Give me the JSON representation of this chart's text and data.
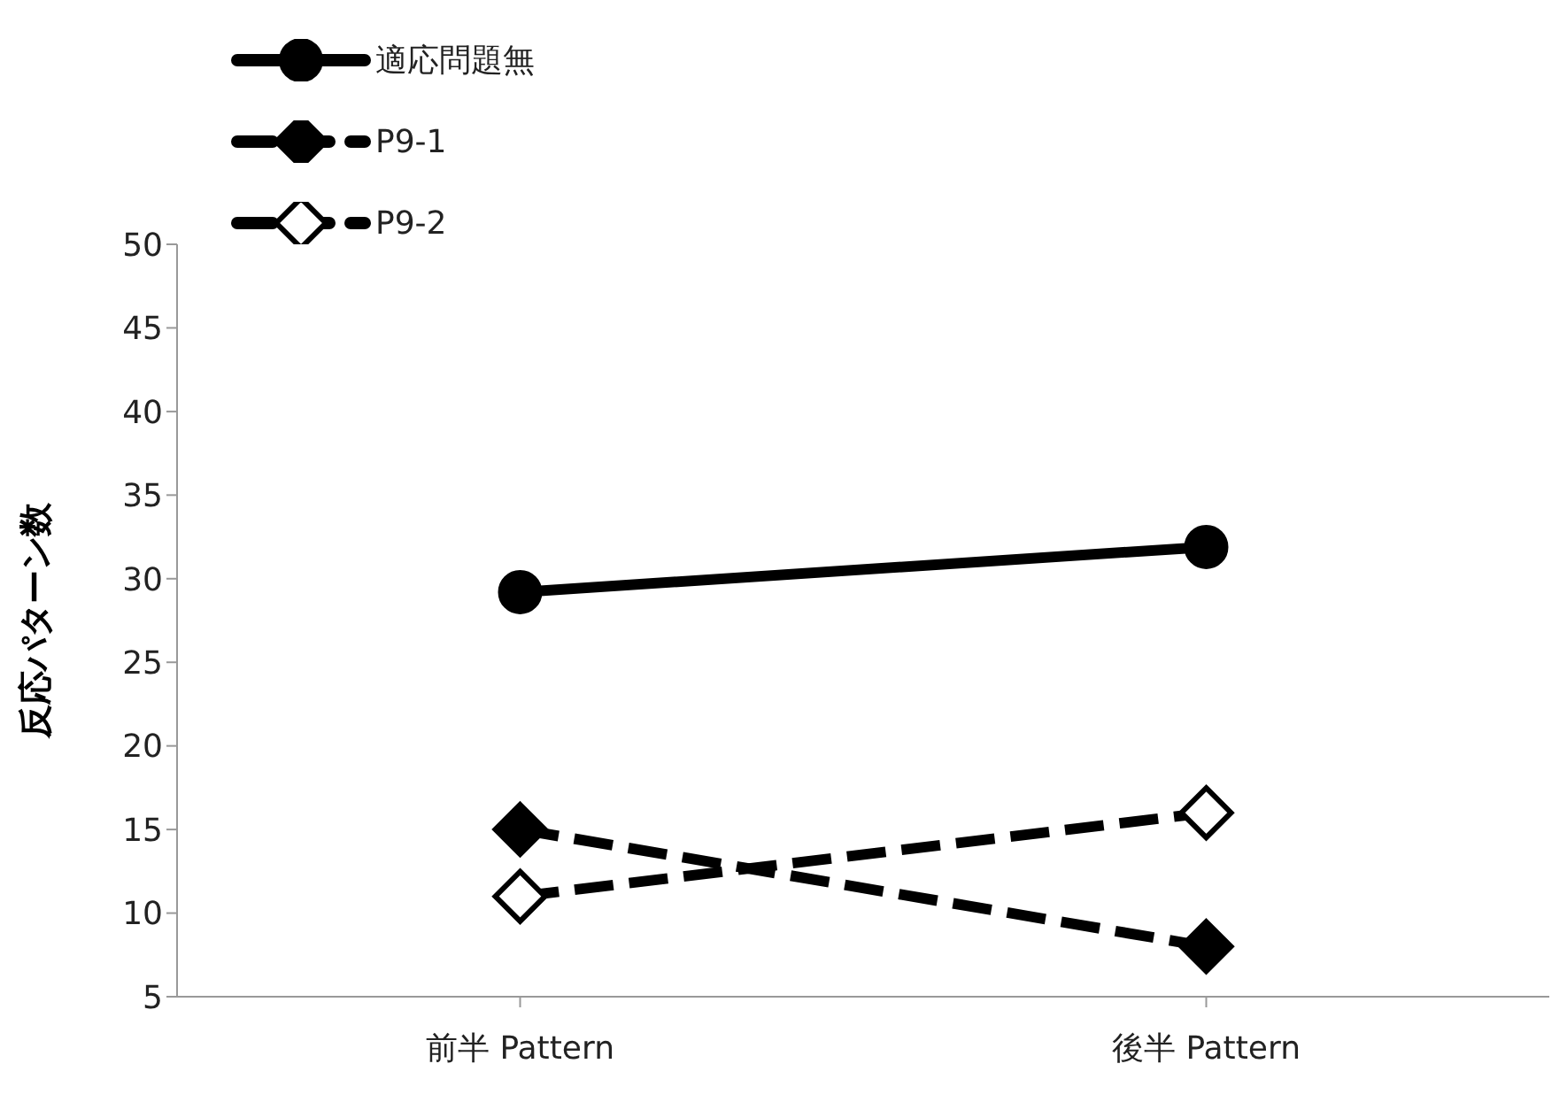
{
  "chart_data": {
    "type": "line",
    "ylabel": "反応パターン数",
    "categories": [
      "前半 Pattern",
      "後半 Pattern"
    ],
    "series": [
      {
        "name": "適応問題無",
        "color": "#000000",
        "values": [
          29.2,
          31.9
        ],
        "marker": "circle",
        "line_style": "solid"
      },
      {
        "name": "P9-1",
        "color": "#000000",
        "values": [
          15,
          8
        ],
        "marker": "diamond",
        "line_style": "dashed"
      },
      {
        "name": "P9-2",
        "color": "#000000",
        "values": [
          11,
          16
        ],
        "marker": "diamond",
        "line_style": "dashed",
        "colors": [
          "#ffffff",
          "#ffffff"
        ]
      }
    ],
    "ylim": [
      5,
      50
    ],
    "yticks": [
      5,
      10,
      15,
      20,
      25,
      30,
      35,
      40,
      45,
      50
    ],
    "grid": false,
    "legend": "top left"
  }
}
